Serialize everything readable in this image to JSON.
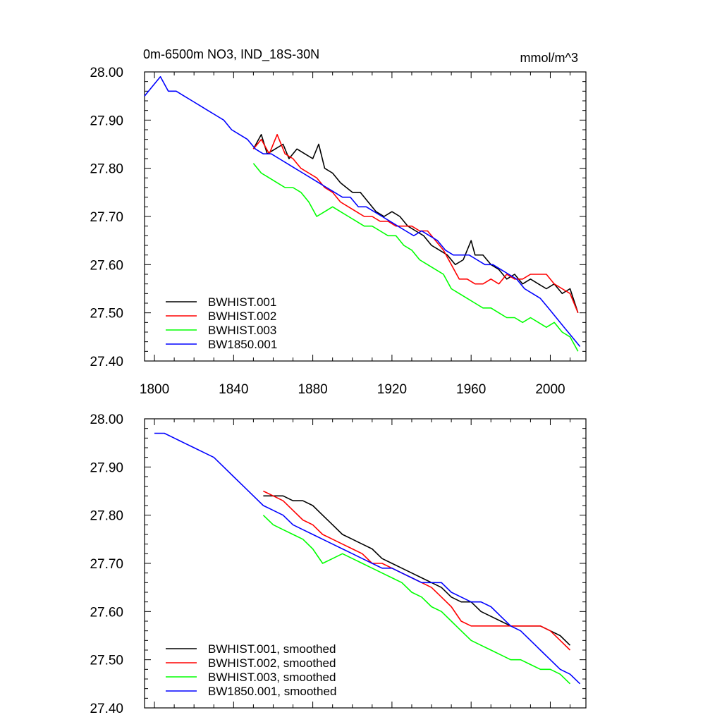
{
  "colors": {
    "BWHIST.001": "#000000",
    "BWHIST.002": "#ff0000",
    "BWHIST.003": "#00ff00",
    "BW1850.001": "#0000ff"
  },
  "chart_data": [
    {
      "type": "line",
      "title": "0m-6500m NO3, IND_18S-30N",
      "units": "mmol/m^3",
      "xlabel": "",
      "ylabel": "",
      "xlim": [
        1795,
        2018
      ],
      "ylim": [
        27.4,
        28.0
      ],
      "x_ticks": [
        "1800",
        "1840",
        "1880",
        "1920",
        "1960",
        "2000"
      ],
      "y_ticks": [
        "27.40",
        "27.50",
        "27.60",
        "27.70",
        "27.80",
        "27.90",
        "28.00"
      ],
      "legend_position": "bottom-left",
      "series": [
        {
          "name": "BWHIST.001",
          "color": "#000000",
          "x": [
            1850,
            1854,
            1857,
            1861,
            1865,
            1868,
            1872,
            1876,
            1880,
            1883,
            1886,
            1890,
            1894,
            1897,
            1900,
            1904,
            1908,
            1912,
            1916,
            1920,
            1924,
            1928,
            1932,
            1936,
            1940,
            1944,
            1948,
            1952,
            1956,
            1960,
            1962,
            1966,
            1970,
            1974,
            1978,
            1982,
            1986,
            1990,
            1994,
            1998,
            2002,
            2006,
            2010,
            2014
          ],
          "y": [
            27.84,
            27.87,
            27.83,
            27.84,
            27.85,
            27.82,
            27.84,
            27.83,
            27.82,
            27.85,
            27.8,
            27.79,
            27.77,
            27.76,
            27.75,
            27.75,
            27.73,
            27.71,
            27.7,
            27.71,
            27.7,
            27.68,
            27.67,
            27.66,
            27.64,
            27.63,
            27.62,
            27.6,
            27.61,
            27.65,
            27.62,
            27.62,
            27.6,
            27.59,
            27.57,
            27.58,
            27.56,
            27.57,
            27.56,
            27.55,
            27.56,
            27.54,
            27.55,
            27.5
          ]
        },
        {
          "name": "BWHIST.002",
          "color": "#ff0000",
          "x": [
            1850,
            1854,
            1858,
            1862,
            1866,
            1870,
            1874,
            1878,
            1882,
            1886,
            1890,
            1894,
            1898,
            1902,
            1906,
            1910,
            1914,
            1918,
            1922,
            1926,
            1930,
            1934,
            1938,
            1942,
            1946,
            1950,
            1954,
            1958,
            1962,
            1966,
            1970,
            1974,
            1978,
            1982,
            1986,
            1990,
            1994,
            1998,
            2002,
            2006,
            2010,
            2014
          ],
          "y": [
            27.84,
            27.86,
            27.83,
            27.87,
            27.83,
            27.82,
            27.8,
            27.79,
            27.78,
            27.76,
            27.75,
            27.73,
            27.72,
            27.71,
            27.7,
            27.7,
            27.69,
            27.69,
            27.68,
            27.68,
            27.68,
            27.67,
            27.67,
            27.65,
            27.63,
            27.6,
            27.57,
            27.57,
            27.56,
            27.56,
            27.57,
            27.56,
            27.58,
            27.57,
            27.57,
            27.58,
            27.58,
            27.58,
            27.56,
            27.55,
            27.54,
            27.5
          ]
        },
        {
          "name": "BWHIST.003",
          "color": "#00ff00",
          "x": [
            1850,
            1854,
            1858,
            1862,
            1866,
            1870,
            1874,
            1878,
            1882,
            1886,
            1890,
            1894,
            1898,
            1902,
            1906,
            1910,
            1914,
            1918,
            1922,
            1926,
            1930,
            1934,
            1938,
            1942,
            1946,
            1950,
            1954,
            1958,
            1962,
            1966,
            1970,
            1974,
            1978,
            1982,
            1986,
            1990,
            1994,
            1998,
            2002,
            2006,
            2010,
            2014
          ],
          "y": [
            27.81,
            27.79,
            27.78,
            27.77,
            27.76,
            27.76,
            27.75,
            27.73,
            27.7,
            27.71,
            27.72,
            27.71,
            27.7,
            27.69,
            27.68,
            27.68,
            27.67,
            27.66,
            27.66,
            27.64,
            27.63,
            27.61,
            27.6,
            27.59,
            27.58,
            27.55,
            27.54,
            27.53,
            27.52,
            27.51,
            27.51,
            27.5,
            27.49,
            27.49,
            27.48,
            27.49,
            27.48,
            27.47,
            27.48,
            27.46,
            27.45,
            27.42
          ]
        },
        {
          "name": "BW1850.001",
          "color": "#0000ff",
          "x": [
            1795,
            1799,
            1803,
            1807,
            1811,
            1815,
            1819,
            1823,
            1827,
            1831,
            1835,
            1839,
            1843,
            1847,
            1851,
            1855,
            1859,
            1863,
            1867,
            1871,
            1875,
            1879,
            1883,
            1887,
            1891,
            1895,
            1899,
            1903,
            1907,
            1911,
            1915,
            1919,
            1923,
            1927,
            1931,
            1935,
            1939,
            1943,
            1947,
            1951,
            1955,
            1959,
            1963,
            1967,
            1971,
            1975,
            1979,
            1983,
            1987,
            1991,
            1995,
            1999,
            2003,
            2007,
            2011,
            2015
          ],
          "y": [
            27.95,
            27.97,
            27.99,
            27.96,
            27.96,
            27.95,
            27.94,
            27.93,
            27.92,
            27.91,
            27.9,
            27.88,
            27.87,
            27.86,
            27.84,
            27.83,
            27.83,
            27.82,
            27.81,
            27.8,
            27.79,
            27.78,
            27.77,
            27.76,
            27.75,
            27.74,
            27.74,
            27.72,
            27.72,
            27.71,
            27.7,
            27.69,
            27.68,
            27.67,
            27.66,
            27.67,
            27.66,
            27.65,
            27.63,
            27.62,
            27.62,
            27.62,
            27.61,
            27.6,
            27.6,
            27.59,
            27.58,
            27.57,
            27.55,
            27.54,
            27.53,
            27.51,
            27.49,
            27.47,
            27.45,
            27.43
          ]
        }
      ]
    },
    {
      "type": "line",
      "title": "",
      "units": "",
      "xlabel": "",
      "ylabel": "",
      "xlim": [
        1795,
        2018
      ],
      "ylim": [
        27.4,
        28.0
      ],
      "x_ticks": [],
      "y_ticks": [
        "27.40",
        "27.50",
        "27.60",
        "27.70",
        "27.80",
        "27.90",
        "28.00"
      ],
      "legend_position": "bottom-left",
      "series": [
        {
          "name": "BWHIST.001, smoothed",
          "color": "#000000",
          "x": [
            1855,
            1860,
            1865,
            1870,
            1875,
            1880,
            1885,
            1890,
            1895,
            1900,
            1905,
            1910,
            1915,
            1920,
            1925,
            1930,
            1935,
            1940,
            1945,
            1950,
            1955,
            1960,
            1965,
            1970,
            1975,
            1980,
            1985,
            1990,
            1995,
            2000,
            2005,
            2010
          ],
          "y": [
            27.84,
            27.84,
            27.84,
            27.83,
            27.83,
            27.82,
            27.8,
            27.78,
            27.76,
            27.75,
            27.74,
            27.73,
            27.71,
            27.7,
            27.69,
            27.68,
            27.67,
            27.66,
            27.65,
            27.63,
            27.62,
            27.62,
            27.6,
            27.59,
            27.58,
            27.57,
            27.57,
            27.57,
            27.57,
            27.56,
            27.55,
            27.53
          ]
        },
        {
          "name": "BWHIST.002, smoothed",
          "color": "#ff0000",
          "x": [
            1855,
            1860,
            1865,
            1870,
            1875,
            1880,
            1885,
            1890,
            1895,
            1900,
            1905,
            1910,
            1915,
            1920,
            1925,
            1930,
            1935,
            1940,
            1945,
            1950,
            1955,
            1960,
            1965,
            1970,
            1975,
            1980,
            1985,
            1990,
            1995,
            2000,
            2005,
            2010
          ],
          "y": [
            27.85,
            27.84,
            27.83,
            27.81,
            27.79,
            27.78,
            27.76,
            27.75,
            27.74,
            27.73,
            27.72,
            27.7,
            27.7,
            27.69,
            27.68,
            27.67,
            27.66,
            27.65,
            27.63,
            27.61,
            27.58,
            27.57,
            27.57,
            27.57,
            27.57,
            27.57,
            27.57,
            27.57,
            27.57,
            27.56,
            27.54,
            27.52
          ]
        },
        {
          "name": "BWHIST.003, smoothed",
          "color": "#00ff00",
          "x": [
            1855,
            1860,
            1865,
            1870,
            1875,
            1880,
            1885,
            1890,
            1895,
            1900,
            1905,
            1910,
            1915,
            1920,
            1925,
            1930,
            1935,
            1940,
            1945,
            1950,
            1955,
            1960,
            1965,
            1970,
            1975,
            1980,
            1985,
            1990,
            1995,
            2000,
            2005,
            2010
          ],
          "y": [
            27.8,
            27.78,
            27.77,
            27.76,
            27.75,
            27.73,
            27.7,
            27.71,
            27.72,
            27.71,
            27.7,
            27.69,
            27.68,
            27.67,
            27.66,
            27.64,
            27.63,
            27.61,
            27.6,
            27.58,
            27.56,
            27.54,
            27.53,
            27.52,
            27.51,
            27.5,
            27.5,
            27.49,
            27.48,
            27.48,
            27.47,
            27.45
          ]
        },
        {
          "name": "BW1850.001, smoothed",
          "color": "#0000ff",
          "x": [
            1800,
            1805,
            1810,
            1815,
            1820,
            1825,
            1830,
            1835,
            1840,
            1845,
            1850,
            1855,
            1860,
            1865,
            1870,
            1875,
            1880,
            1885,
            1890,
            1895,
            1900,
            1905,
            1910,
            1915,
            1920,
            1925,
            1930,
            1935,
            1940,
            1945,
            1950,
            1955,
            1960,
            1965,
            1970,
            1975,
            1980,
            1985,
            1990,
            1995,
            2000,
            2005,
            2010,
            2015
          ],
          "y": [
            27.97,
            27.97,
            27.96,
            27.95,
            27.94,
            27.93,
            27.92,
            27.9,
            27.88,
            27.86,
            27.84,
            27.82,
            27.81,
            27.8,
            27.78,
            27.77,
            27.76,
            27.75,
            27.74,
            27.73,
            27.72,
            27.71,
            27.7,
            27.69,
            27.69,
            27.68,
            27.67,
            27.66,
            27.66,
            27.66,
            27.64,
            27.63,
            27.62,
            27.62,
            27.61,
            27.59,
            27.57,
            27.56,
            27.54,
            27.52,
            27.5,
            27.48,
            27.47,
            27.45
          ]
        }
      ]
    }
  ]
}
